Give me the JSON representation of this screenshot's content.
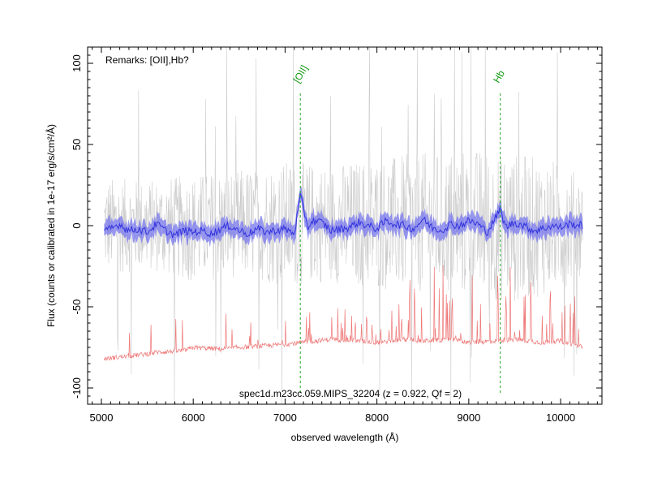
{
  "chart_data": {
    "type": "line",
    "title": "",
    "xlabel": "observed wavelength (Å)",
    "ylabel": "Flux (counts or calibrated in 1e-17 erg/s/cm²/Å)",
    "xlim": [
      4850,
      10450
    ],
    "ylim": [
      -110,
      110
    ],
    "x_ticks": [
      5000,
      6000,
      7000,
      8000,
      9000,
      10000
    ],
    "y_ticks": [
      -100,
      -50,
      0,
      50,
      100
    ],
    "grid": false,
    "annotations": {
      "remarks": "Remarks: [OII],Hb?",
      "caption": "spec1d.m23cc.059.MIPS_32204 (z = 0.922, Qf = 2)"
    },
    "emission_lines": [
      {
        "label": "[OII]",
        "x": 7166
      },
      {
        "label": "Hb",
        "x": 9343
      }
    ],
    "series": [
      {
        "role": "raw-flux-envelope",
        "color": "#cccccc",
        "x": [
          5030,
          5500,
          6000,
          6500,
          7000,
          7500,
          8000,
          8500,
          9000,
          9500,
          10000,
          10240
        ],
        "low": [
          -30,
          -28,
          -35,
          -32,
          -38,
          -35,
          -40,
          -42,
          -45,
          -48,
          -40,
          -30
        ],
        "high": [
          30,
          28,
          32,
          35,
          40,
          38,
          42,
          45,
          48,
          45,
          40,
          30
        ]
      },
      {
        "role": "smoothed-flux",
        "color": "#3333dd",
        "band_color": "#7777ee",
        "x": [
          5030,
          5100,
          5200,
          5300,
          5400,
          5500,
          5600,
          5700,
          5800,
          5900,
          6000,
          6100,
          6200,
          6300,
          6400,
          6500,
          6600,
          6700,
          6800,
          6900,
          7000,
          7100,
          7166,
          7250,
          7300,
          7400,
          7500,
          7600,
          7700,
          7800,
          7900,
          8000,
          8100,
          8200,
          8300,
          8400,
          8500,
          8600,
          8700,
          8800,
          8900,
          9000,
          9100,
          9200,
          9343,
          9400,
          9500,
          9600,
          9700,
          9800,
          9900,
          10000,
          10100,
          10240
        ],
        "y": [
          -4,
          -2,
          1,
          -3,
          -2,
          -4,
          1,
          -3,
          -6,
          -3,
          -4,
          -3,
          -5,
          -2,
          0,
          -3,
          -5,
          -2,
          -4,
          -3,
          -2,
          -5,
          18,
          -1,
          3,
          2,
          -3,
          -2,
          -1,
          2,
          0,
          -2,
          3,
          1,
          0,
          -2,
          4,
          -1,
          -3,
          1,
          0,
          3,
          1,
          -4,
          10,
          -1,
          2,
          0,
          -3,
          -2,
          0,
          -1,
          1,
          0
        ]
      },
      {
        "role": "error-spectrum",
        "color": "#ee7777",
        "x": [
          5030,
          5500,
          5600,
          5900,
          6000,
          6300,
          6500,
          6800,
          7000,
          7200,
          7500,
          7800,
          8000,
          8300,
          8500,
          8800,
          9000,
          9300,
          9500,
          9800,
          10000,
          10240
        ],
        "y": [
          -82,
          -79,
          -78,
          -77,
          -75,
          -76,
          -75,
          -74,
          -73,
          -72,
          -70,
          -71,
          -72,
          -70,
          -71,
          -70,
          -72,
          -71,
          -70,
          -72,
          -71,
          -75
        ]
      }
    ]
  }
}
